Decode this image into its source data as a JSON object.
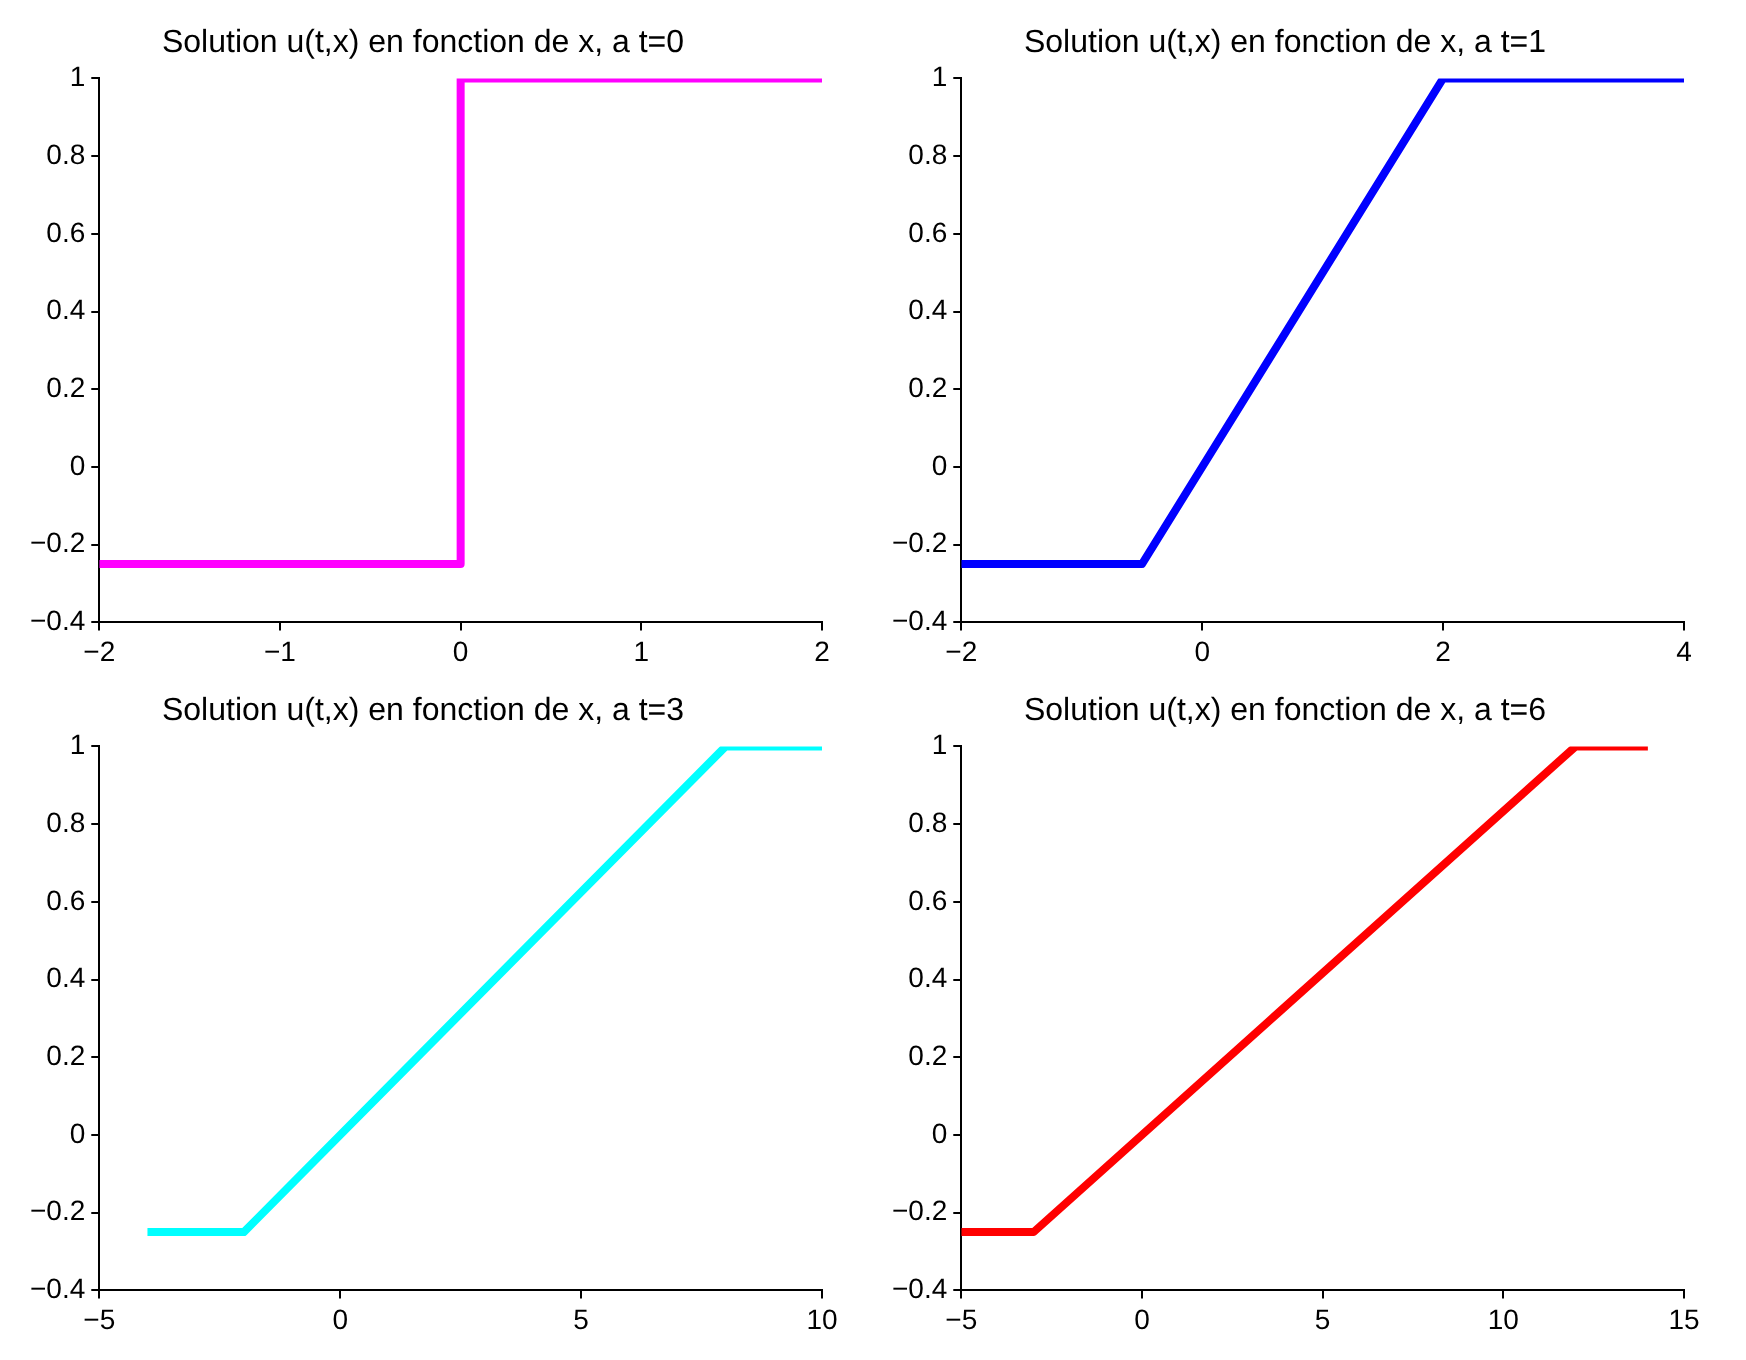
{
  "chart_data": [
    {
      "type": "line",
      "title": "Solution u(t,x) en fonction de x, a t=0",
      "x": [
        -2,
        0,
        0,
        2
      ],
      "series": [
        {
          "color": "#ff00ff",
          "values": [
            -0.25,
            -0.25,
            1,
            1
          ]
        }
      ],
      "xlim": [
        -2,
        2
      ],
      "xticks": [
        -2,
        -1,
        0,
        1,
        2
      ],
      "ylim": [
        -0.4,
        1
      ],
      "yticks": [
        -0.4,
        -0.2,
        0,
        0.2,
        0.4,
        0.6,
        0.8,
        1
      ],
      "grid": false,
      "legend": false,
      "marker": "none",
      "line_style": "solid"
    },
    {
      "type": "line",
      "title": "Solution u(t,x) en fonction de x, a t=1",
      "x": [
        -2,
        -0.5,
        2,
        4
      ],
      "series": [
        {
          "color": "#0000ff",
          "values": [
            -0.25,
            -0.25,
            1,
            1
          ]
        }
      ],
      "xlim": [
        -2,
        4
      ],
      "xticks": [
        -2,
        0,
        2,
        4
      ],
      "ylim": [
        -0.4,
        1
      ],
      "yticks": [
        -0.4,
        -0.2,
        0,
        0.2,
        0.4,
        0.6,
        0.8,
        1
      ],
      "grid": false,
      "legend": false,
      "marker": "none",
      "line_style": "solid"
    },
    {
      "type": "line",
      "title": "Solution u(t,x) en fonction de x, a t=3",
      "x": [
        -4,
        -2,
        8,
        10
      ],
      "series": [
        {
          "color": "#00ffff",
          "values": [
            -0.25,
            -0.25,
            1,
            1
          ]
        }
      ],
      "xlim": [
        -5,
        10
      ],
      "xticks": [
        -5,
        0,
        5,
        10
      ],
      "ylim": [
        -0.4,
        1
      ],
      "yticks": [
        -0.4,
        -0.2,
        0,
        0.2,
        0.4,
        0.6,
        0.8,
        1
      ],
      "grid": false,
      "legend": false,
      "marker": "none",
      "line_style": "solid"
    },
    {
      "type": "line",
      "title": "Solution u(t,x) en fonction de x, a t=6",
      "x": [
        -5,
        -3,
        12,
        14
      ],
      "series": [
        {
          "color": "#ff0000",
          "values": [
            -0.25,
            -0.25,
            1,
            1
          ]
        }
      ],
      "xlim": [
        -5,
        15
      ],
      "xticks": [
        -5,
        0,
        5,
        10,
        15
      ],
      "ylim": [
        -0.4,
        1
      ],
      "yticks": [
        -0.4,
        -0.2,
        0,
        0.2,
        0.4,
        0.6,
        0.8,
        1
      ],
      "grid": false,
      "legend": false,
      "marker": "none",
      "line_style": "solid"
    }
  ]
}
